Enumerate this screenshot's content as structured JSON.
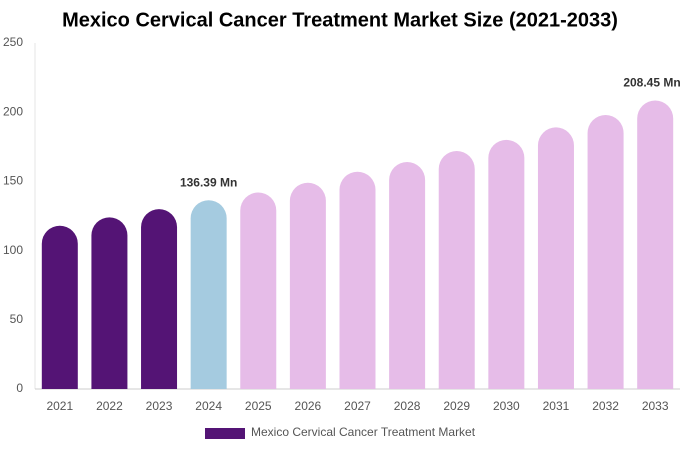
{
  "chart_data": {
    "type": "bar",
    "title": "Mexico Cervical Cancer Treatment Market Size (2021-2033)",
    "categories": [
      "2021",
      "2022",
      "2023",
      "2024",
      "2025",
      "2026",
      "2027",
      "2028",
      "2029",
      "2030",
      "2031",
      "2032",
      "2033"
    ],
    "series": [
      {
        "name": "Mexico Cervical Cancer Treatment Market",
        "color": "#541475",
        "values": [
          118,
          124,
          130,
          136.39,
          142,
          149,
          157,
          164,
          172,
          180,
          189,
          198,
          208.45
        ],
        "value_labels": [
          null,
          null,
          null,
          "136.39 Mn",
          null,
          null,
          null,
          null,
          null,
          null,
          null,
          null,
          "208.45 Mn"
        ],
        "bar_colors": [
          "#541475",
          "#541475",
          "#541475",
          "#a5cbe0",
          "#e6bce8",
          "#e6bce8",
          "#e6bce8",
          "#e6bce8",
          "#e6bce8",
          "#e6bce8",
          "#e6bce8",
          "#e6bce8",
          "#e6bce8"
        ]
      }
    ],
    "ylim": [
      0,
      250
    ],
    "yticks": [
      0,
      50,
      100,
      150,
      200,
      250
    ],
    "grid": false
  }
}
